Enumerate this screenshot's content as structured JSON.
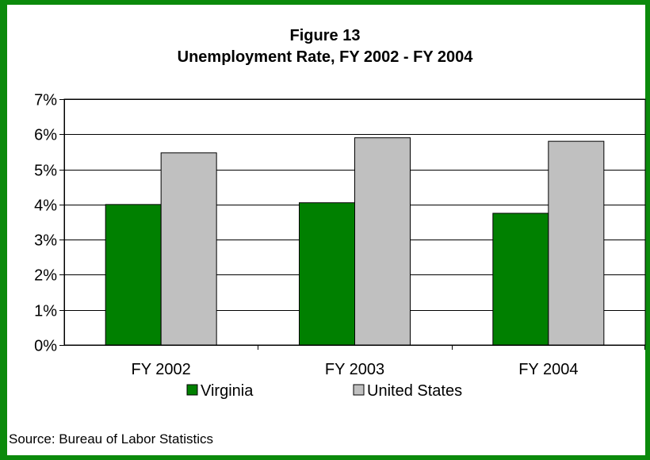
{
  "chart_data": {
    "type": "bar",
    "title": "Figure 13",
    "subtitle": "Unemployment Rate, FY 2002 - FY 2004",
    "categories": [
      "FY 2002",
      "FY 2003",
      "FY 2004"
    ],
    "series": [
      {
        "name": "Virginia",
        "values": [
          4.0,
          4.05,
          3.75
        ],
        "color": "#008000"
      },
      {
        "name": "United States",
        "values": [
          5.47,
          5.9,
          5.8
        ],
        "color": "#c0c0c0"
      }
    ],
    "ylim": [
      0,
      7
    ],
    "yticks": [
      0,
      1,
      2,
      3,
      4,
      5,
      6,
      7
    ],
    "ytick_labels": [
      "0%",
      "1%",
      "2%",
      "3%",
      "4%",
      "5%",
      "6%",
      "7%"
    ],
    "grid": true,
    "legend": "bottom",
    "source": "Source:  Bureau of Labor Statistics"
  },
  "colors": {
    "frame": "#0b8a0b",
    "gridline": "#000000"
  }
}
